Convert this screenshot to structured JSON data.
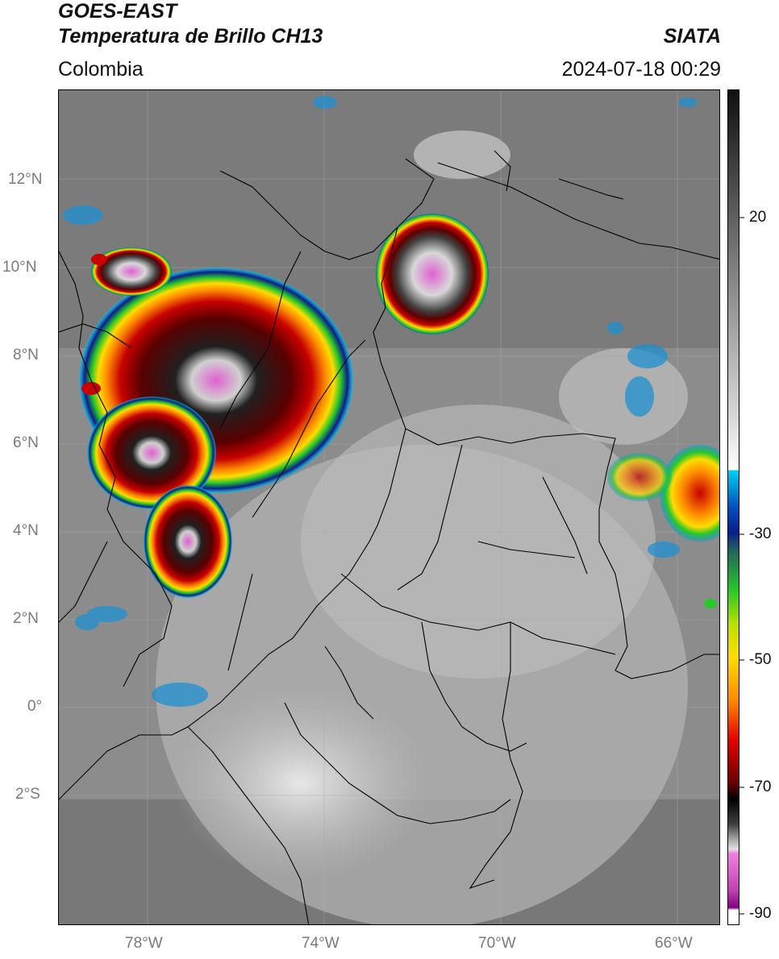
{
  "header": {
    "satellite": "GOES-EAST",
    "product": "Temperatura de Brillo CH13",
    "region": "Colombia",
    "agency": "SIATA",
    "datetime": "2024-07-18 00:29"
  },
  "axes": {
    "lat_ticks": [
      "12°N",
      "10°N",
      "8°N",
      "6°N",
      "4°N",
      "2°N",
      "0°",
      "2°S"
    ],
    "lon_ticks": [
      "78°W",
      "74°W",
      "70°W",
      "66°W"
    ]
  },
  "colorbar": {
    "ticks": [
      "20",
      "-30",
      "-50",
      "-70",
      "-90"
    ],
    "colors": {
      "dark_gray": "#303030",
      "light_gray": "#e6e6e6",
      "cyan": "#00c8f0",
      "blue": "#0a1e8c",
      "green": "#28c828",
      "yellow": "#ffdc00",
      "orange": "#ff8c00",
      "red": "#c80000",
      "dark_red": "#5a0000",
      "black": "#000000",
      "pink": "#e060d0",
      "purple": "#800080"
    }
  }
}
